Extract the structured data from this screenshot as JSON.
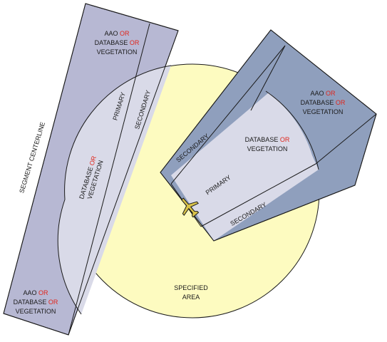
{
  "colors": {
    "specified_area_fill": "#fdfbc0",
    "area_stroke": "#1a1a1a",
    "segment_outer_fill": "#b7b8d3",
    "segment_inner_fill": "#d9dae8",
    "segment_wing_fill": "#8f9fbd",
    "connector_text": "#e0261c",
    "label_text": "#1a1a1a"
  },
  "labels": {
    "or_word": "OR",
    "aao": "AAO",
    "database": "DATABASE",
    "vegetation": "VEGETATION",
    "primary": "PRIMARY",
    "secondary": "SECONDARY",
    "segment_centerline": "SEGMENT CENTERLINE",
    "specified": "SPECIFIED",
    "area": "AREA"
  },
  "icons": {
    "aircraft": "airplane-icon"
  }
}
